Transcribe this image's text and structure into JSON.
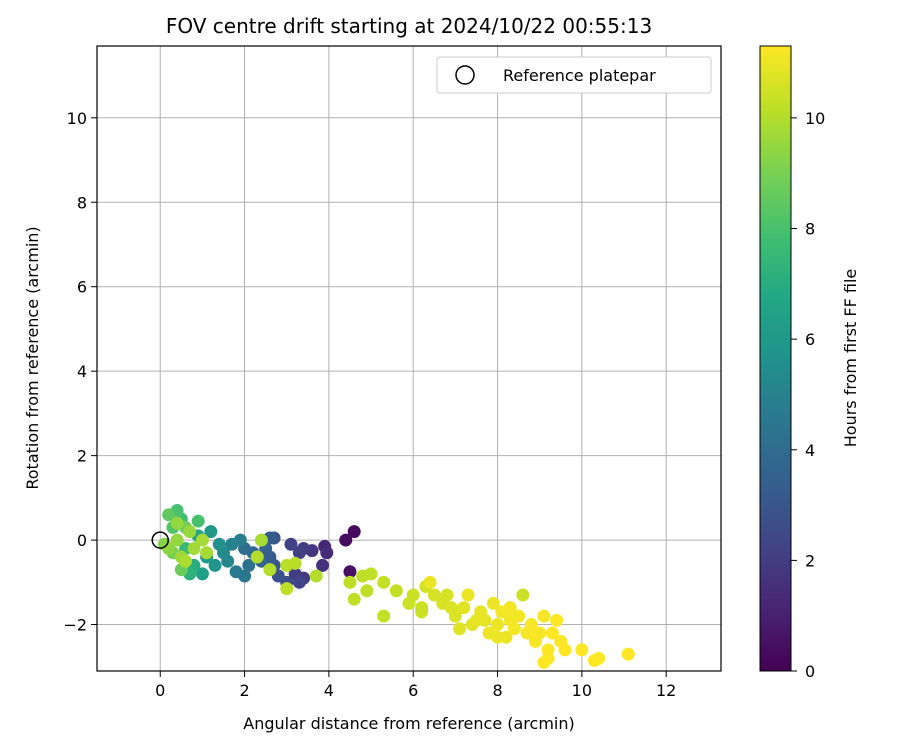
{
  "chart_data": {
    "type": "scatter",
    "title": "FOV centre drift starting at 2024/10/22 00:55:13",
    "xlabel": "Angular distance from reference (arcmin)",
    "ylabel": "Rotation from reference (arcmin)",
    "xlim": [
      -1.5,
      13.3
    ],
    "ylim": [
      -3.1,
      11.7
    ],
    "xticks": [
      0,
      2,
      4,
      6,
      8,
      10,
      12
    ],
    "yticks": [
      -2,
      0,
      2,
      4,
      6,
      8,
      10
    ],
    "grid": true,
    "legend": {
      "placement": "top-right",
      "entries": [
        "Reference platepar"
      ]
    },
    "reference_point": {
      "x": 0,
      "y": 0
    },
    "colorbar": {
      "label": "Hours from first FF file",
      "colormap": "viridis",
      "range": [
        0,
        11.3
      ],
      "ticks": [
        0,
        2,
        4,
        6,
        8,
        10
      ]
    },
    "points": [
      {
        "x": 4.6,
        "y": 0.2,
        "t": 0.3
      },
      {
        "x": 4.4,
        "y": 0.0,
        "t": 0.4
      },
      {
        "x": 4.5,
        "y": -0.75,
        "t": 0.5
      },
      {
        "x": 3.9,
        "y": -0.15,
        "t": 1.2
      },
      {
        "x": 3.95,
        "y": -0.3,
        "t": 1.4
      },
      {
        "x": 3.85,
        "y": -0.6,
        "t": 1.6
      },
      {
        "x": 3.6,
        "y": -0.25,
        "t": 1.8
      },
      {
        "x": 3.4,
        "y": -0.2,
        "t": 2.0
      },
      {
        "x": 3.3,
        "y": -0.3,
        "t": 2.1
      },
      {
        "x": 3.1,
        "y": -0.1,
        "t": 2.2
      },
      {
        "x": 3.2,
        "y": -0.8,
        "t": 2.0
      },
      {
        "x": 3.4,
        "y": -0.9,
        "t": 1.9
      },
      {
        "x": 3.3,
        "y": -1.0,
        "t": 2.3
      },
      {
        "x": 3.0,
        "y": -1.0,
        "t": 2.6
      },
      {
        "x": 2.8,
        "y": -0.85,
        "t": 2.8
      },
      {
        "x": 2.7,
        "y": -0.6,
        "t": 3.0
      },
      {
        "x": 2.7,
        "y": 0.05,
        "t": 3.0
      },
      {
        "x": 2.6,
        "y": 0.05,
        "t": 3.2
      },
      {
        "x": 2.5,
        "y": -0.2,
        "t": 3.5
      },
      {
        "x": 2.6,
        "y": -0.4,
        "t": 3.3
      },
      {
        "x": 2.4,
        "y": -0.5,
        "t": 3.6
      },
      {
        "x": 2.2,
        "y": -0.3,
        "t": 3.8
      },
      {
        "x": 2.0,
        "y": -0.2,
        "t": 4.0
      },
      {
        "x": 2.1,
        "y": -0.6,
        "t": 4.2
      },
      {
        "x": 2.0,
        "y": -0.85,
        "t": 4.4
      },
      {
        "x": 1.8,
        "y": -0.75,
        "t": 4.6
      },
      {
        "x": 1.9,
        "y": 0.0,
        "t": 4.8
      },
      {
        "x": 1.7,
        "y": -0.1,
        "t": 5.0
      },
      {
        "x": 1.6,
        "y": -0.5,
        "t": 5.2
      },
      {
        "x": 1.5,
        "y": -0.3,
        "t": 5.4
      },
      {
        "x": 1.4,
        "y": -0.1,
        "t": 5.6
      },
      {
        "x": 1.3,
        "y": -0.6,
        "t": 5.8
      },
      {
        "x": 1.2,
        "y": 0.2,
        "t": 6.0
      },
      {
        "x": 1.1,
        "y": -0.4,
        "t": 6.2
      },
      {
        "x": 1.0,
        "y": -0.8,
        "t": 6.4
      },
      {
        "x": 0.9,
        "y": 0.1,
        "t": 6.6
      },
      {
        "x": 0.8,
        "y": -0.6,
        "t": 7.0
      },
      {
        "x": 0.7,
        "y": -0.8,
        "t": 7.2
      },
      {
        "x": 0.6,
        "y": -0.2,
        "t": 7.5
      },
      {
        "x": 0.5,
        "y": 0.5,
        "t": 7.8
      },
      {
        "x": 0.4,
        "y": 0.7,
        "t": 8.0
      },
      {
        "x": 0.3,
        "y": 0.3,
        "t": 8.2
      },
      {
        "x": 0.2,
        "y": 0.6,
        "t": 8.5
      },
      {
        "x": 0.5,
        "y": -0.7,
        "t": 8.7
      },
      {
        "x": 0.9,
        "y": 0.45,
        "t": 8.0
      },
      {
        "x": 0.6,
        "y": 0.3,
        "t": 8.8
      },
      {
        "x": 0.3,
        "y": -0.3,
        "t": 9.0
      },
      {
        "x": 0.1,
        "y": -0.1,
        "t": 9.2
      },
      {
        "x": 0.2,
        "y": -0.2,
        "t": 9.4
      },
      {
        "x": 0.4,
        "y": 0.0,
        "t": 9.5
      },
      {
        "x": 0.5,
        "y": -0.4,
        "t": 9.6
      },
      {
        "x": 0.7,
        "y": 0.2,
        "t": 9.6
      },
      {
        "x": 0.8,
        "y": -0.2,
        "t": 9.7
      },
      {
        "x": 1.0,
        "y": 0.0,
        "t": 9.8
      },
      {
        "x": 1.1,
        "y": -0.3,
        "t": 9.8
      },
      {
        "x": 0.6,
        "y": -0.5,
        "t": 9.9
      },
      {
        "x": 0.4,
        "y": 0.4,
        "t": 9.5
      },
      {
        "x": 2.4,
        "y": 0.0,
        "t": 9.8
      },
      {
        "x": 2.3,
        "y": -0.4,
        "t": 10.0
      },
      {
        "x": 2.6,
        "y": -0.7,
        "t": 10.0
      },
      {
        "x": 3.0,
        "y": -0.6,
        "t": 10.1
      },
      {
        "x": 3.2,
        "y": -0.55,
        "t": 10.1
      },
      {
        "x": 3.0,
        "y": -1.15,
        "t": 10.2
      },
      {
        "x": 3.7,
        "y": -0.85,
        "t": 10.0
      },
      {
        "x": 4.5,
        "y": -1.0,
        "t": 10.2
      },
      {
        "x": 4.6,
        "y": -1.4,
        "t": 10.2
      },
      {
        "x": 4.8,
        "y": -0.85,
        "t": 10.2
      },
      {
        "x": 5.0,
        "y": -0.8,
        "t": 10.2
      },
      {
        "x": 4.9,
        "y": -1.2,
        "t": 10.2
      },
      {
        "x": 5.3,
        "y": -1.0,
        "t": 10.3
      },
      {
        "x": 5.6,
        "y": -1.2,
        "t": 10.3
      },
      {
        "x": 5.3,
        "y": -1.8,
        "t": 10.3
      },
      {
        "x": 5.9,
        "y": -1.5,
        "t": 10.4
      },
      {
        "x": 6.0,
        "y": -1.3,
        "t": 10.4
      },
      {
        "x": 6.2,
        "y": -1.6,
        "t": 10.4
      },
      {
        "x": 6.3,
        "y": -1.1,
        "t": 10.5
      },
      {
        "x": 6.4,
        "y": -1.0,
        "t": 11.0
      },
      {
        "x": 6.5,
        "y": -1.3,
        "t": 10.6
      },
      {
        "x": 6.7,
        "y": -1.5,
        "t": 10.6
      },
      {
        "x": 6.9,
        "y": -1.6,
        "t": 10.7
      },
      {
        "x": 7.0,
        "y": -1.8,
        "t": 10.7
      },
      {
        "x": 7.2,
        "y": -1.6,
        "t": 10.8
      },
      {
        "x": 7.3,
        "y": -1.3,
        "t": 11.0
      },
      {
        "x": 7.4,
        "y": -2.0,
        "t": 10.8
      },
      {
        "x": 7.5,
        "y": -1.9,
        "t": 10.9
      },
      {
        "x": 7.6,
        "y": -1.7,
        "t": 10.9
      },
      {
        "x": 7.8,
        "y": -2.2,
        "t": 11.0
      },
      {
        "x": 7.9,
        "y": -1.5,
        "t": 11.0
      },
      {
        "x": 8.0,
        "y": -2.0,
        "t": 11.0
      },
      {
        "x": 8.1,
        "y": -1.7,
        "t": 11.1
      },
      {
        "x": 8.2,
        "y": -2.3,
        "t": 11.0
      },
      {
        "x": 8.3,
        "y": -1.9,
        "t": 11.1
      },
      {
        "x": 8.4,
        "y": -2.1,
        "t": 11.1
      },
      {
        "x": 8.5,
        "y": -1.8,
        "t": 11.1
      },
      {
        "x": 8.6,
        "y": -1.3,
        "t": 10.4
      },
      {
        "x": 8.7,
        "y": -2.2,
        "t": 11.2
      },
      {
        "x": 8.8,
        "y": -2.0,
        "t": 11.2
      },
      {
        "x": 8.9,
        "y": -2.4,
        "t": 11.2
      },
      {
        "x": 9.0,
        "y": -2.2,
        "t": 11.2
      },
      {
        "x": 9.1,
        "y": -1.8,
        "t": 11.2
      },
      {
        "x": 9.2,
        "y": -2.6,
        "t": 11.3
      },
      {
        "x": 9.1,
        "y": -2.9,
        "t": 11.3
      },
      {
        "x": 9.3,
        "y": -2.2,
        "t": 11.3
      },
      {
        "x": 9.4,
        "y": -1.9,
        "t": 11.3
      },
      {
        "x": 9.5,
        "y": -2.4,
        "t": 11.3
      },
      {
        "x": 9.6,
        "y": -2.6,
        "t": 11.3
      },
      {
        "x": 10.0,
        "y": -2.6,
        "t": 11.3
      },
      {
        "x": 10.4,
        "y": -2.8,
        "t": 11.3
      },
      {
        "x": 10.3,
        "y": -2.85,
        "t": 11.3
      },
      {
        "x": 11.1,
        "y": -2.7,
        "t": 11.3
      },
      {
        "x": 6.2,
        "y": -1.7,
        "t": 10.4
      },
      {
        "x": 6.8,
        "y": -1.3,
        "t": 10.6
      },
      {
        "x": 7.7,
        "y": -1.9,
        "t": 10.9
      },
      {
        "x": 8.0,
        "y": -2.3,
        "t": 11.0
      },
      {
        "x": 9.2,
        "y": -2.8,
        "t": 11.3
      },
      {
        "x": 8.3,
        "y": -1.6,
        "t": 11.1
      },
      {
        "x": 7.1,
        "y": -2.1,
        "t": 10.8
      }
    ]
  }
}
